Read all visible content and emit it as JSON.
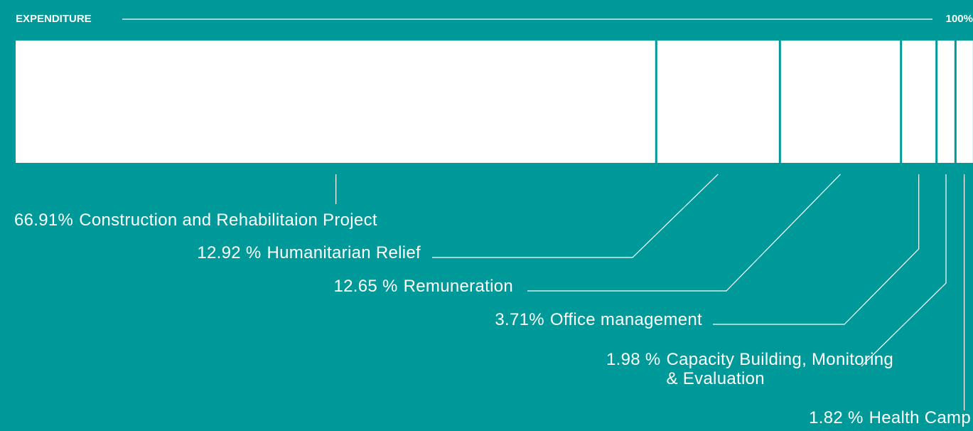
{
  "chart_data": {
    "type": "stacked-bar-100",
    "title": "EXPENDITURE",
    "categories": [
      "Construction and Rehabilitaion Project",
      "Humanitarian Relief",
      "Remuneration",
      "Office management",
      "Capacity Building, Monitoring & Evaluation",
      "Health Camp"
    ],
    "values": [
      66.91,
      12.92,
      12.65,
      3.71,
      1.98,
      1.82
    ],
    "value_labels": [
      "66.91%",
      "12.92 %",
      "12.65 %",
      "3.71%",
      "1.98 %",
      "1.82 %"
    ],
    "color": "#ffffff",
    "xlim": [
      0,
      100
    ],
    "xticks": [
      {
        "value": 100,
        "label": "100%"
      }
    ]
  }
}
